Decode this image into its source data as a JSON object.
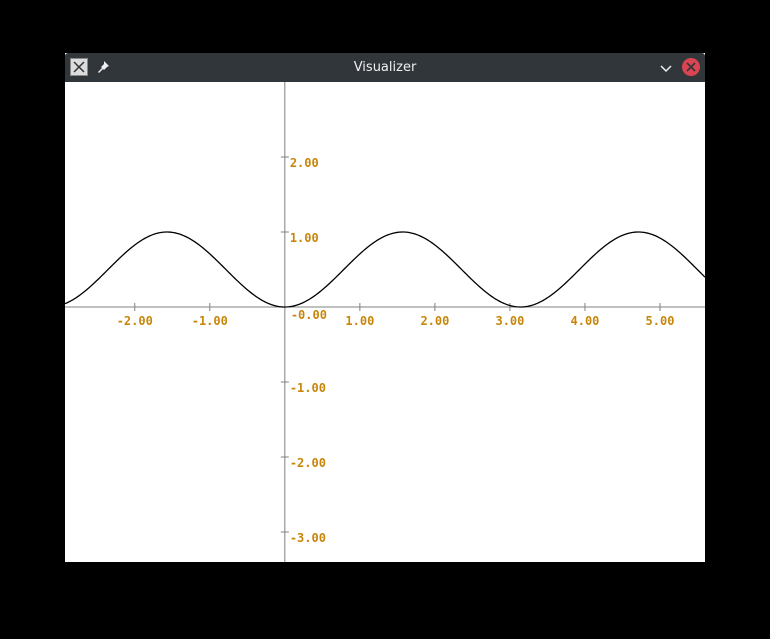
{
  "window": {
    "title": "Visualizer",
    "icons": {
      "app": "app-icon",
      "pin": "pin-icon",
      "minimize": "chevron-down-icon",
      "close": "close-icon"
    },
    "colors": {
      "titlebar": "#31363b",
      "close": "#da4453"
    }
  },
  "chart_data": {
    "type": "line",
    "title": "",
    "xlabel": "",
    "ylabel": "",
    "xlim": [
      -2.93,
      5.6
    ],
    "ylim": [
      -3.4,
      3.0
    ],
    "grid": false,
    "x_ticks": [
      -2,
      -1,
      1,
      2,
      3,
      4,
      5
    ],
    "x_tick_labels": [
      "-2.00",
      "-1.00",
      "1.00",
      "2.00",
      "3.00",
      "4.00",
      "5.00"
    ],
    "y_ticks": [
      2,
      1,
      -1,
      -2,
      -3
    ],
    "y_tick_labels": [
      "2.00",
      "1.00",
      "-1.00",
      "-2.00",
      "-3.00"
    ],
    "origin_label": "-0.00",
    "series": [
      {
        "function": "sin^2(x)",
        "color": "#000000",
        "x": [
          -2.93,
          -2.75,
          -2.5,
          -2.25,
          -2.0,
          -1.75,
          -1.5,
          -1.25,
          -1.0,
          -0.75,
          -0.5,
          -0.25,
          0.0,
          0.25,
          0.5,
          0.75,
          1.0,
          1.25,
          1.5,
          1.75,
          2.0,
          2.25,
          2.5,
          2.75,
          3.0,
          3.25,
          3.5,
          3.75,
          4.0,
          4.25,
          4.5,
          4.75,
          5.0,
          5.25,
          5.5,
          5.6
        ],
        "y": [
          0.043,
          0.146,
          0.358,
          0.605,
          0.827,
          0.968,
          0.995,
          0.903,
          0.708,
          0.465,
          0.23,
          0.061,
          0.0,
          0.061,
          0.23,
          0.465,
          0.708,
          0.903,
          0.995,
          0.968,
          0.827,
          0.605,
          0.358,
          0.146,
          0.02,
          0.012,
          0.123,
          0.327,
          0.573,
          0.8,
          0.955,
          0.999,
          0.919,
          0.737,
          0.498,
          0.399
        ]
      }
    ],
    "label_color": "#c8860a",
    "axis_color": "#808080"
  }
}
